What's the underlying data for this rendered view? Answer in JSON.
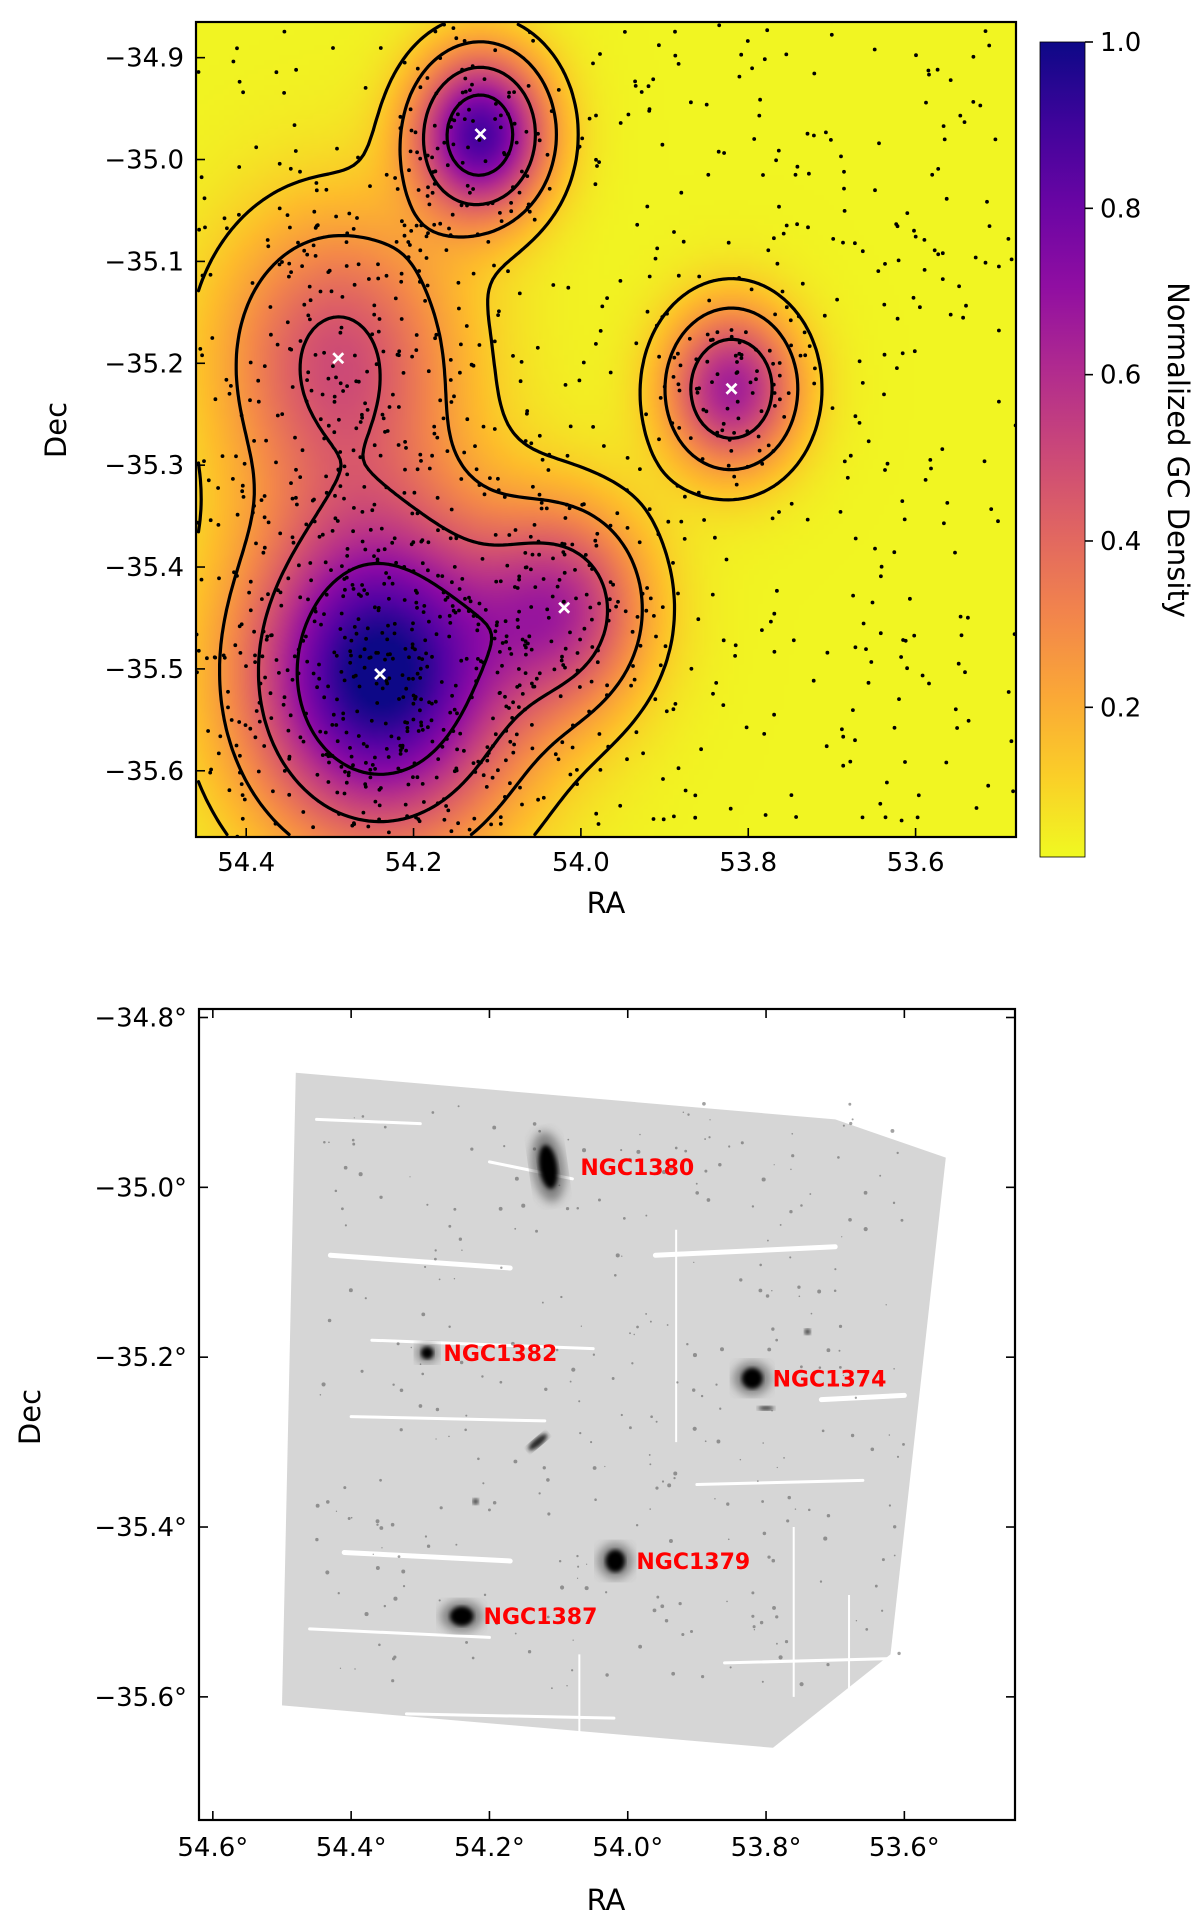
{
  "chart_data": [
    {
      "type": "heatmap",
      "title": "",
      "xlabel": "RA",
      "ylabel": "Dec",
      "xlim": [
        54.46,
        53.48
      ],
      "ylim": [
        -35.665,
        -34.865
      ],
      "x_ticks": [
        {
          "value": 54.4,
          "label": "54.4"
        },
        {
          "value": 54.2,
          "label": "54.2"
        },
        {
          "value": 54.0,
          "label": "54.0"
        },
        {
          "value": 53.8,
          "label": "53.8"
        },
        {
          "value": 53.6,
          "label": "53.6"
        }
      ],
      "y_ticks": [
        {
          "value": -34.9,
          "label": "−34.9"
        },
        {
          "value": -35.0,
          "label": "−35.0"
        },
        {
          "value": -35.1,
          "label": "−35.1"
        },
        {
          "value": -35.2,
          "label": "−35.2"
        },
        {
          "value": -35.3,
          "label": "−35.3"
        },
        {
          "value": -35.4,
          "label": "−35.4"
        },
        {
          "value": -35.5,
          "label": "−35.5"
        },
        {
          "value": -35.6,
          "label": "−35.6"
        }
      ],
      "colorbar": {
        "label": "Normalized GC Density",
        "colormap": "plasma_r",
        "range": [
          0.02,
          1.0
        ],
        "ticks": [
          {
            "value": 1.0,
            "label": "1.0"
          },
          {
            "value": 0.8,
            "label": "0.8"
          },
          {
            "value": 0.6,
            "label": "0.6"
          },
          {
            "value": 0.4,
            "label": "0.4"
          },
          {
            "value": 0.2,
            "label": "0.2"
          }
        ]
      },
      "density_peaks": [
        {
          "ra": 54.24,
          "dec": -35.505,
          "amplitude": 1.0,
          "sigma": 0.11
        },
        {
          "ra": 54.12,
          "dec": -34.975,
          "amplitude": 0.85,
          "sigma": 0.055
        },
        {
          "ra": 53.82,
          "dec": -35.225,
          "amplitude": 0.62,
          "sigma": 0.055
        },
        {
          "ra": 54.02,
          "dec": -35.44,
          "amplitude": 0.5,
          "sigma": 0.07
        },
        {
          "ra": 54.29,
          "dec": -35.195,
          "amplitude": 0.45,
          "sigma": 0.1
        }
      ],
      "background_density": 0.03,
      "contour_levels": [
        0.12,
        0.25,
        0.45,
        0.7
      ],
      "gc_point_count": 1400,
      "peak_markers": [
        {
          "ra": 54.12,
          "dec": -34.975
        },
        {
          "ra": 54.29,
          "dec": -35.195
        },
        {
          "ra": 53.82,
          "dec": -35.225
        },
        {
          "ra": 54.02,
          "dec": -35.44
        },
        {
          "ra": 54.24,
          "dec": -35.505
        }
      ],
      "grid": false,
      "legend": "none"
    },
    {
      "type": "scatter",
      "title": "",
      "xlabel": "RA",
      "ylabel": "Dec",
      "xlim": [
        54.62,
        53.44
      ],
      "ylim": [
        -35.745,
        -34.79
      ],
      "x_ticks": [
        {
          "value": 54.6,
          "label": "54.6°"
        },
        {
          "value": 54.4,
          "label": "54.4°"
        },
        {
          "value": 54.2,
          "label": "54.2°"
        },
        {
          "value": 54.0,
          "label": "54.0°"
        },
        {
          "value": 53.8,
          "label": "53.8°"
        },
        {
          "value": 53.6,
          "label": "53.6°"
        }
      ],
      "y_ticks": [
        {
          "value": -34.8,
          "label": "−34.8°"
        },
        {
          "value": -35.0,
          "label": "−35.0°"
        },
        {
          "value": -35.2,
          "label": "−35.2°"
        },
        {
          "value": -35.4,
          "label": "−35.4°"
        },
        {
          "value": -35.6,
          "label": "−35.6°"
        }
      ],
      "footprint": [
        {
          "ra": 54.48,
          "dec": -34.865
        },
        {
          "ra": 53.7,
          "dec": -34.92
        },
        {
          "ra": 53.54,
          "dec": -34.965
        },
        {
          "ra": 53.62,
          "dec": -35.55
        },
        {
          "ra": 53.79,
          "dec": -35.66
        },
        {
          "ra": 54.5,
          "dec": -35.61
        }
      ],
      "galaxies": [
        {
          "name": "NGC1380",
          "ra": 54.115,
          "dec": -34.976,
          "rx": 0.013,
          "ry": 0.032,
          "angle": -8
        },
        {
          "name": "NGC1382",
          "ra": 54.29,
          "dec": -35.195,
          "rx": 0.009,
          "ry": 0.009,
          "angle": 0
        },
        {
          "name": "NGC1374",
          "ra": 53.82,
          "dec": -35.225,
          "rx": 0.015,
          "ry": 0.015,
          "angle": 0
        },
        {
          "name": "NGC1379",
          "ra": 54.018,
          "dec": -35.44,
          "rx": 0.014,
          "ry": 0.016,
          "angle": 0
        },
        {
          "name": "NGC1387",
          "ra": 54.24,
          "dec": -35.505,
          "rx": 0.017,
          "ry": 0.014,
          "angle": 0
        }
      ],
      "grid": false,
      "legend": "none"
    }
  ]
}
